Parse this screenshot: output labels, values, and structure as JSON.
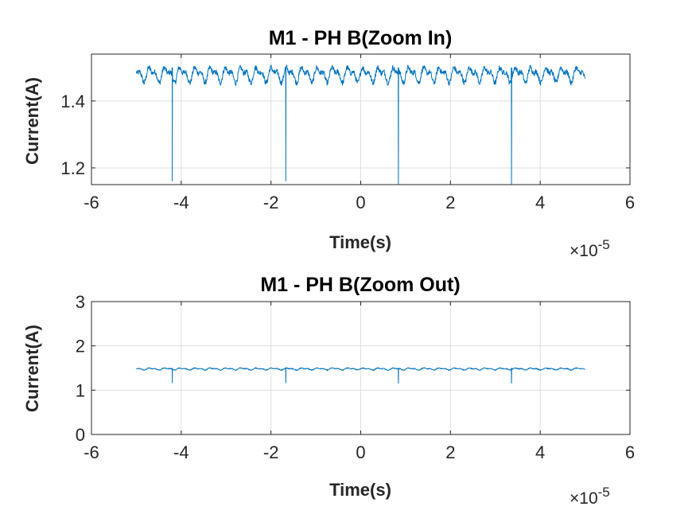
{
  "chart_data": [
    {
      "type": "line",
      "title": "M1 - PH B(Zoom In)",
      "xlabel": "Time(s)",
      "ylabel": "Current(A)",
      "x_exponent_label": "×10",
      "x_exponent": "-5",
      "xlim": [
        -6,
        6
      ],
      "ylim": [
        1.15,
        1.54
      ],
      "xticks": [
        -6,
        -4,
        -2,
        0,
        2,
        4,
        6
      ],
      "xtick_labels": [
        "-6",
        "-4",
        "-2",
        "0",
        "2",
        "4",
        "6"
      ],
      "yticks": [
        1.2,
        1.4
      ],
      "ytick_labels": [
        "1.2",
        "1.4"
      ],
      "grid": true,
      "series_color": "#0072bd",
      "signal": {
        "x_range": [
          -5,
          5
        ],
        "baseline": 1.48,
        "ripple_amplitude": 0.03,
        "ripple_period": 0.34,
        "dips": [
          {
            "x": -4.2,
            "y": 1.16
          },
          {
            "x": -1.67,
            "y": 1.16
          },
          {
            "x": 0.84,
            "y": 1.15
          },
          {
            "x": 3.36,
            "y": 1.15
          }
        ]
      }
    },
    {
      "type": "line",
      "title": "M1 - PH B(Zoom Out)",
      "xlabel": "Time(s)",
      "ylabel": "Current(A)",
      "x_exponent_label": "×10",
      "x_exponent": "-5",
      "xlim": [
        -6,
        6
      ],
      "ylim": [
        0,
        3
      ],
      "xticks": [
        -6,
        -4,
        -2,
        0,
        2,
        4,
        6
      ],
      "xtick_labels": [
        "-6",
        "-4",
        "-2",
        "0",
        "2",
        "4",
        "6"
      ],
      "yticks": [
        0,
        1,
        2,
        3
      ],
      "ytick_labels": [
        "0",
        "1",
        "2",
        "3"
      ],
      "grid": true,
      "series_color": "#0072bd",
      "signal": {
        "x_range": [
          -5,
          5
        ],
        "baseline": 1.48,
        "ripple_amplitude": 0.03,
        "ripple_period": 0.34,
        "dips": [
          {
            "x": -4.2,
            "y": 1.16
          },
          {
            "x": -1.67,
            "y": 1.16
          },
          {
            "x": 0.84,
            "y": 1.15
          },
          {
            "x": 3.36,
            "y": 1.15
          }
        ]
      }
    }
  ]
}
